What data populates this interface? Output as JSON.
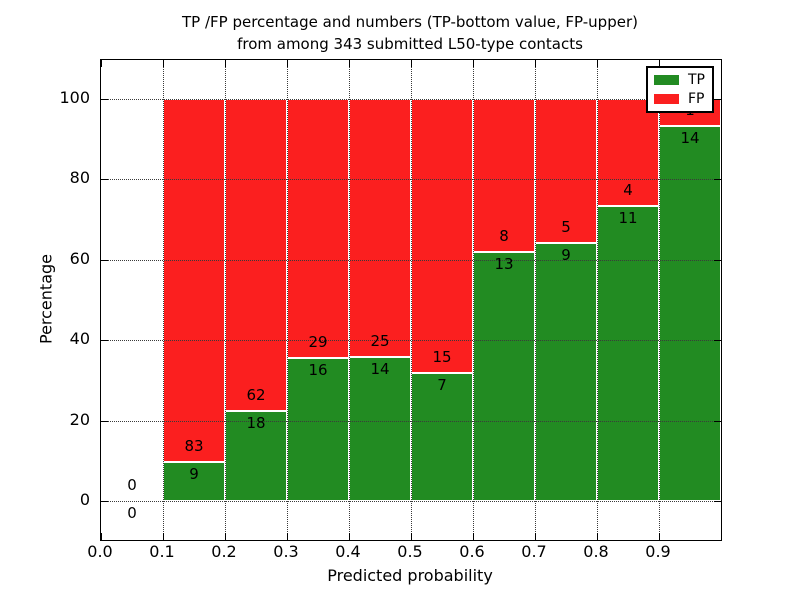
{
  "figure": {
    "title_line1": "TP /FP percentage and numbers (TP-bottom value, FP-upper)",
    "title_line2": "from among 343 submitted L50-type contacts",
    "xlabel": "Predicted probability",
    "ylabel": "Percentage"
  },
  "legend": {
    "items": [
      {
        "label": "TP",
        "color": "#228b22"
      },
      {
        "label": "FP",
        "color": "#fb1f1f"
      }
    ]
  },
  "chart_data": {
    "type": "bar",
    "stacked": true,
    "normalized": "each bin stacked to 100%; labels show raw counts (TP bottom, FP upper)",
    "title": "TP /FP percentage and numbers (TP-bottom value, FP-upper) from among 343 submitted L50-type contacts",
    "xlabel": "Predicted probability",
    "ylabel": "Percentage",
    "total_contacts": 343,
    "bin_edges": [
      0.0,
      0.1,
      0.2,
      0.3,
      0.4,
      0.5,
      0.6,
      0.7,
      0.8,
      0.9,
      1.0
    ],
    "series": [
      {
        "name": "TP",
        "color": "#228b22",
        "values": [
          0,
          9,
          18,
          16,
          14,
          7,
          13,
          9,
          11,
          14
        ]
      },
      {
        "name": "FP",
        "color": "#fb1f1f",
        "values": [
          0,
          83,
          62,
          29,
          25,
          15,
          8,
          5,
          4,
          1
        ]
      }
    ],
    "tp_percent_per_bin": [
      null,
      9.8,
      22.5,
      35.6,
      35.9,
      31.8,
      61.9,
      64.3,
      73.3,
      93.3
    ],
    "xlim": [
      0.0,
      1.0
    ],
    "ylim": [
      -9.7,
      109.7
    ],
    "yticks": [
      0,
      20,
      40,
      60,
      80,
      100
    ],
    "ytick_labels": [
      "0",
      "20",
      "40",
      "60",
      "80",
      "100"
    ],
    "xticks": [
      0.0,
      0.1,
      0.2,
      0.3,
      0.4,
      0.5,
      0.6,
      0.7,
      0.8,
      0.9
    ],
    "xtick_labels": [
      "0.0",
      "0.1",
      "0.2",
      "0.3",
      "0.4",
      "0.5",
      "0.6",
      "0.7",
      "0.8",
      "0.9"
    ],
    "grid": "dotted, drawn over bars",
    "legend_position": "upper right"
  }
}
